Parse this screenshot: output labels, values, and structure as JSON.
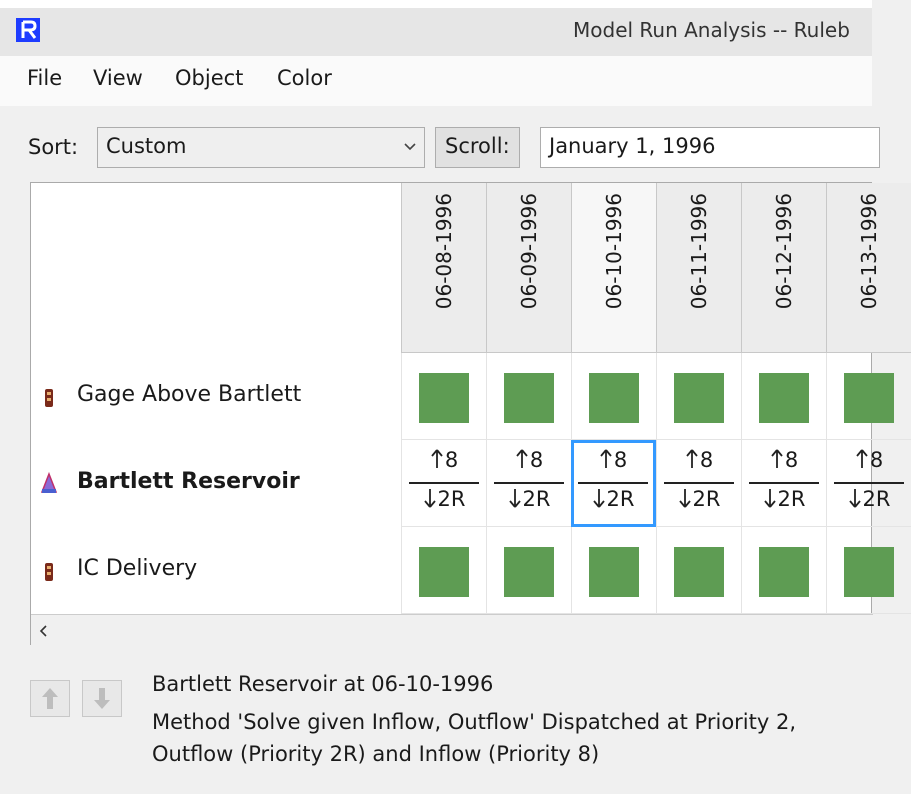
{
  "window": {
    "title": "Model Run Analysis -- Ruleb"
  },
  "menu": [
    "File",
    "View",
    "Object",
    "Color"
  ],
  "toolbar": {
    "sort_label": "Sort:",
    "sort_value": "Custom",
    "scroll_label": "Scroll:",
    "scroll_value": "January 1, 1996"
  },
  "table": {
    "columns": [
      "06-08-1996",
      "06-09-1996",
      "06-10-1996",
      "06-11-1996",
      "06-12-1996",
      "06-13-1996"
    ],
    "selected": {
      "row": 1,
      "column": 2
    },
    "status_color": "#5e9c53",
    "rows": [
      {
        "name": "Gage Above Bartlett",
        "icon": "gage"
      },
      {
        "name": "Bartlett Reservoir",
        "icon": "reservoir",
        "bold": true,
        "cells": [
          {
            "up": "8",
            "down": "2R"
          },
          {
            "up": "8",
            "down": "2R"
          },
          {
            "up": "8",
            "down": "2R"
          },
          {
            "up": "8",
            "down": "2R"
          },
          {
            "up": "8",
            "down": "2R"
          },
          {
            "up": "8",
            "down": "2R"
          }
        ]
      },
      {
        "name": "IC Delivery",
        "icon": "gage"
      }
    ]
  },
  "details": {
    "heading": "Bartlett Reservoir at 06-10-1996",
    "lines": [
      "Method 'Solve given Inflow, Outflow' Dispatched at Priority 2,",
      "Outflow (Priority 2R) and Inflow (Priority 8)"
    ]
  }
}
